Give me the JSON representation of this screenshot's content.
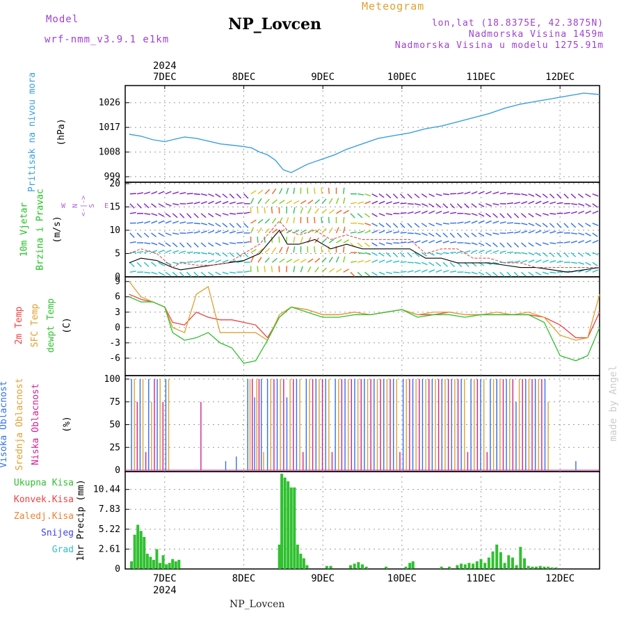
{
  "header": {
    "model_label": "Model",
    "model_name": "wrf-nmm_v3.9.1 e1km",
    "title": "NP_Lovcen",
    "meteogram": "Meteogram",
    "coords": "lon,lat (18.8375E, 42.3875N)",
    "altitude": "Nadmorska Visina 1459m",
    "model_altitude": "Nadmorska Visina u modelu 1275.91m"
  },
  "footer": {
    "station": "NP_Lovcen",
    "watermark": "made by Angel"
  },
  "colors": {
    "pressure": "#3aa0e0",
    "wind_label": "#20c020",
    "temp2m": "#f04040",
    "sfc": "#e0a030",
    "dew": "#30c030",
    "high_cloud": "#3070f0",
    "mid_cloud": "#e0a030",
    "low_cloud": "#d02090",
    "rain": "#30c030",
    "conv": "#f04040",
    "freeze": "#f08030",
    "snow": "#4040f0",
    "grad": "#30c0c0",
    "header_purple": "#a040d0",
    "header_orange": "#e0a030"
  },
  "chart_data": [
    {
      "type": "line",
      "name": "sea-level-pressure",
      "ylabel_lines": [
        "Pritisak na nivou mora",
        "(hPa)"
      ],
      "yticks": [
        "1026",
        "1017",
        "1008",
        "999"
      ],
      "ylim": [
        998,
        1031
      ],
      "x": [
        6.55,
        6.7,
        6.85,
        7.0,
        7.1,
        7.25,
        7.4,
        7.55,
        7.7,
        7.85,
        8.0,
        8.1,
        8.2,
        8.3,
        8.4,
        8.5,
        8.6,
        8.7,
        8.8,
        8.9,
        9.0,
        9.15,
        9.3,
        9.5,
        9.7,
        9.9,
        10.1,
        10.3,
        10.5,
        10.7,
        10.9,
        11.1,
        11.3,
        11.5,
        11.7,
        11.9,
        12.1,
        12.3,
        12.5
      ],
      "values": [
        1014.5,
        1013.8,
        1012.5,
        1011.8,
        1012.5,
        1013.5,
        1013,
        1012,
        1011,
        1010.5,
        1010,
        1009.5,
        1008,
        1007,
        1005,
        1001.5,
        1000.5,
        1002,
        1003.5,
        1004.5,
        1005.5,
        1007,
        1009,
        1011,
        1013,
        1014,
        1015,
        1016.5,
        1017.5,
        1019,
        1020.5,
        1022,
        1024,
        1025.5,
        1026.5,
        1027.5,
        1028.5,
        1029.5,
        1029.0
      ]
    },
    {
      "type": "line",
      "name": "wind",
      "ylabel_lines": [
        "10m Vjetar",
        "Brzina i Pravac",
        "(m/s)"
      ],
      "compass_lines": [
        "N",
        "<-|->",
        "S"
      ],
      "compass_left": "W",
      "compass_right": "E",
      "yticks": [
        "20",
        "15",
        "10",
        "5",
        "0"
      ],
      "ylim": [
        0,
        20
      ],
      "x": [
        6.55,
        6.7,
        6.9,
        7.1,
        7.2,
        7.4,
        7.6,
        7.8,
        8.0,
        8.2,
        8.35,
        8.45,
        8.55,
        8.7,
        8.9,
        9.1,
        9.3,
        9.5,
        9.7,
        9.9,
        10.1,
        10.3,
        10.5,
        10.7,
        10.9,
        11.1,
        11.3,
        11.5,
        11.7,
        11.9,
        12.1,
        12.3,
        12.5
      ],
      "series": [
        {
          "values": [
            3,
            4,
            3.5,
            2,
            1.5,
            2,
            2.5,
            3,
            3.5,
            5,
            8,
            10,
            7,
            7,
            8,
            6,
            7,
            6,
            6,
            6,
            6,
            4,
            4,
            3,
            3,
            3,
            2.5,
            2,
            2,
            1.5,
            1,
            1.5,
            2
          ]
        },
        {
          "values": [
            5,
            6,
            5,
            2,
            3,
            2.5,
            2.5,
            3,
            5,
            7,
            10,
            12,
            10,
            9,
            10,
            8,
            9,
            8,
            8,
            8,
            8,
            5,
            6,
            6,
            4,
            4,
            3,
            3,
            2,
            2,
            2,
            2,
            2
          ]
        }
      ]
    },
    {
      "type": "line",
      "name": "temperature",
      "ylabel_lines": [
        "2m Temp",
        "SFC Temp",
        "dewpt Temp",
        "(C)"
      ],
      "yticks": [
        "9",
        "6",
        "3",
        "0",
        "-3",
        "-6"
      ],
      "ylim": [
        -9,
        9.5
      ],
      "x": [
        6.55,
        6.7,
        6.85,
        7.0,
        7.1,
        7.25,
        7.4,
        7.55,
        7.7,
        7.85,
        8.0,
        8.15,
        8.3,
        8.45,
        8.6,
        8.8,
        9.0,
        9.2,
        9.4,
        9.6,
        9.8,
        10.0,
        10.2,
        10.4,
        10.6,
        10.8,
        11.0,
        11.2,
        11.4,
        11.6,
        11.8,
        12.0,
        12.2,
        12.35,
        12.5
      ],
      "series": [
        {
          "name": "2m Temp",
          "values": [
            6.5,
            5.5,
            5,
            4,
            1,
            0.5,
            3,
            2,
            1.5,
            1.5,
            1,
            0.5,
            -2,
            2,
            4,
            3.5,
            2.5,
            2.5,
            3,
            2.5,
            3,
            3.5,
            2.5,
            2.5,
            3,
            2.5,
            2.5,
            2.5,
            2.5,
            2.5,
            2,
            0.5,
            -2,
            -2,
            3
          ]
        },
        {
          "name": "SFC Temp",
          "values": [
            9,
            6,
            5,
            4,
            0,
            -1,
            6.5,
            8,
            -1,
            -1,
            -1,
            -1,
            -2.5,
            2.5,
            4,
            3.5,
            2.5,
            2.5,
            3,
            2.5,
            3,
            3.5,
            2.5,
            3,
            3,
            2.5,
            2.5,
            3,
            2.5,
            3,
            2,
            -1.5,
            -2.5,
            -2,
            6.5
          ]
        },
        {
          "name": "dewpt Temp",
          "values": [
            6,
            5,
            5,
            4,
            -1,
            -2.5,
            -2,
            -1,
            -3,
            -4,
            -7,
            -6.5,
            -2.5,
            2,
            4,
            3,
            2,
            2,
            2.5,
            2.5,
            3,
            3.5,
            2,
            2.5,
            2.5,
            2,
            2.5,
            2.5,
            2.5,
            2.5,
            1,
            -5.5,
            -6.5,
            -5.5,
            0
          ]
        }
      ]
    },
    {
      "type": "bar",
      "name": "cloud-cover",
      "ylabel_lines": [
        "Visoka Oblacnost",
        "Srednja Oblacnost",
        "Niska Oblacnost",
        "(%)"
      ],
      "yticks": [
        "100",
        "75",
        "50",
        "25",
        "0"
      ],
      "ylim": [
        0,
        100
      ],
      "segments": [
        {
          "range": [
            6.58,
            7.05
          ],
          "pattern": [
            100,
            100,
            75,
            100,
            100,
            20,
            100,
            75,
            100,
            100,
            100,
            75,
            100,
            100
          ]
        },
        {
          "range": [
            7.1,
            7.95
          ],
          "pattern": [
            0,
            0,
            0,
            0,
            0,
            0,
            0,
            0,
            75,
            0,
            0,
            0,
            0,
            0,
            0,
            10,
            0,
            0,
            15,
            0
          ]
        },
        {
          "range": [
            8.05,
            8.25
          ],
          "pattern": [
            100,
            100,
            100,
            80,
            100,
            100,
            100,
            20
          ]
        },
        {
          "range": [
            8.3,
            11.2
          ],
          "pattern": [
            100,
            100,
            100,
            100,
            100,
            100,
            80,
            100,
            100,
            100,
            100,
            20,
            100,
            100,
            100,
            100,
            100,
            100,
            100,
            100,
            20,
            100,
            100,
            100,
            100,
            100,
            100,
            100,
            100,
            100,
            100,
            100,
            100,
            100,
            100,
            100,
            100,
            100,
            100,
            100,
            100,
            20,
            100,
            100,
            100,
            100,
            100,
            100,
            100,
            100,
            100,
            100,
            100,
            100,
            100,
            100,
            100,
            100,
            100,
            100,
            100,
            100,
            20,
            100,
            100,
            100,
            100,
            100,
            20,
            100,
            100,
            100
          ]
        },
        {
          "range": [
            11.2,
            11.85
          ],
          "pattern": [
            100,
            100,
            100,
            100,
            100,
            100,
            75,
            100,
            100,
            100,
            100,
            100,
            100,
            100,
            100,
            100,
            75
          ]
        },
        {
          "range": [
            12.2,
            12.4
          ],
          "pattern": [
            10
          ]
        }
      ]
    },
    {
      "type": "bar",
      "name": "precipitation",
      "ylabel_lines": [
        "1hr Precip (mm)"
      ],
      "legend": [
        "Ukupna Kisa",
        "Konvek.Kisa",
        "Zaledj.Kisa",
        "Snijeg",
        "Grad"
      ],
      "yticks": [
        "10.44",
        "7.83",
        "5.22",
        "2.61",
        "0"
      ],
      "ylim": [
        0,
        12.6
      ],
      "bars": [
        [
          6.58,
          1
        ],
        [
          6.62,
          4.5
        ],
        [
          6.66,
          5.8
        ],
        [
          6.7,
          5
        ],
        [
          6.74,
          4.2
        ],
        [
          6.78,
          2
        ],
        [
          6.82,
          1.6
        ],
        [
          6.86,
          1.2
        ],
        [
          6.9,
          2.6
        ],
        [
          6.94,
          0.8
        ],
        [
          6.98,
          1.8
        ],
        [
          7.02,
          0.6
        ],
        [
          7.06,
          0.8
        ],
        [
          7.1,
          1.3
        ],
        [
          7.14,
          1
        ],
        [
          7.18,
          1.2
        ],
        [
          8.45,
          3.2
        ],
        [
          8.48,
          12.5
        ],
        [
          8.52,
          12
        ],
        [
          8.56,
          11.5
        ],
        [
          8.6,
          10.7
        ],
        [
          8.64,
          10.7
        ],
        [
          8.68,
          3.2
        ],
        [
          8.72,
          2
        ],
        [
          8.76,
          1.4
        ],
        [
          8.8,
          0.5
        ],
        [
          9.05,
          0.4
        ],
        [
          9.1,
          0.4
        ],
        [
          9.35,
          0.5
        ],
        [
          9.4,
          0.7
        ],
        [
          9.45,
          0.9
        ],
        [
          9.5,
          0.6
        ],
        [
          9.55,
          0.3
        ],
        [
          9.8,
          0.3
        ],
        [
          10.05,
          0.3
        ],
        [
          10.1,
          0.8
        ],
        [
          10.14,
          1
        ],
        [
          10.5,
          0.3
        ],
        [
          10.6,
          0.3
        ],
        [
          10.7,
          0.5
        ],
        [
          10.75,
          0.7
        ],
        [
          10.8,
          0.6
        ],
        [
          10.85,
          0.8
        ],
        [
          10.9,
          0.7
        ],
        [
          10.95,
          1
        ],
        [
          11.0,
          1.3
        ],
        [
          11.05,
          0.8
        ],
        [
          11.1,
          1.5
        ],
        [
          11.15,
          2.3
        ],
        [
          11.2,
          3.2
        ],
        [
          11.25,
          2.2
        ],
        [
          11.3,
          0.8
        ],
        [
          11.35,
          1.8
        ],
        [
          11.4,
          1.5
        ],
        [
          11.45,
          0.5
        ],
        [
          11.5,
          2.9
        ],
        [
          11.55,
          1.4
        ],
        [
          11.6,
          0.4
        ],
        [
          11.65,
          0.3
        ],
        [
          11.7,
          0.3
        ],
        [
          11.75,
          0.4
        ],
        [
          11.8,
          0.3
        ],
        [
          11.85,
          0.3
        ],
        [
          11.9,
          0.2
        ],
        [
          11.95,
          0.2
        ]
      ]
    }
  ],
  "x_axis": {
    "year": "2024",
    "day_ticks": [
      {
        "label": "7DEC",
        "x": 7
      },
      {
        "label": "8DEC",
        "x": 8
      },
      {
        "label": "9DEC",
        "x": 9
      },
      {
        "label": "10DEC",
        "x": 10
      },
      {
        "label": "11DEC",
        "x": 11
      },
      {
        "label": "12DEC",
        "x": 12
      }
    ],
    "xlim": [
      6.5,
      12.5
    ]
  }
}
